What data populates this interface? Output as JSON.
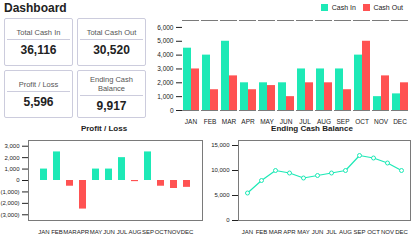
{
  "chart_data": [
    {
      "type": "kpi",
      "title": "Dashboard",
      "categories": [
        "Total Cash In",
        "Total Cash Out",
        "Profit / Loss",
        "Ending Cash Balance"
      ],
      "values": [
        36116,
        30520,
        5596,
        9917
      ],
      "value_labels": [
        "36,116",
        "30,520",
        "5,596",
        "9,917"
      ],
      "data_labels": true
    },
    {
      "type": "bar",
      "categories": [
        "JAN",
        "FEB",
        "MAR",
        "APR",
        "MAY",
        "JUN",
        "JUL",
        "AUG",
        "SEP",
        "OCT",
        "NOV",
        "DEC"
      ],
      "series": [
        {
          "name": "Cash In",
          "color": "#1de9b6",
          "values": [
            4500,
            4000,
            5000,
            2000,
            2000,
            2000,
            3000,
            3000,
            3000,
            4000,
            1000,
            1200
          ]
        },
        {
          "name": "Cash Out",
          "color": "#ff5252",
          "values": [
            3000,
            1500,
            2500,
            1500,
            1800,
            1000,
            2000,
            2000,
            1500,
            5000,
            2500,
            2000
          ]
        }
      ],
      "ylim": [
        0,
        6500
      ],
      "yticks": [
        0,
        {
          "value": 1000,
          "label": "1,000"
        },
        {
          "value": 2000,
          "label": "2,000"
        },
        {
          "value": 3000,
          "label": "3,000"
        },
        {
          "value": 4000,
          "label": "4,000"
        },
        {
          "value": 5000,
          "label": "5,000"
        },
        {
          "value": 6000,
          "label": "6,000"
        }
      ],
      "legend": "upper right"
    },
    {
      "type": "bar",
      "title": "Profit / Loss",
      "categories": [
        "JAN",
        "FEB",
        "MAR",
        "APR",
        "MAY",
        "JUN",
        "JUL",
        "AUG",
        "SEP",
        "OCT",
        "NOV",
        "DEC"
      ],
      "values": [
        1000,
        2500,
        -500,
        -2500,
        1000,
        1000,
        2000,
        -100,
        2500,
        -500,
        -700,
        -600
      ],
      "colors": [
        "#1de9b6",
        "#1de9b6",
        "#ff5252",
        "#ff5252",
        "#1de9b6",
        "#1de9b6",
        "#1de9b6",
        "#ff5252",
        "#1de9b6",
        "#ff5252",
        "#ff5252",
        "#ff5252"
      ],
      "ylim": [
        -3500,
        3500
      ],
      "yticks": [
        {
          "value": -3000,
          "label": "(3,000)"
        },
        {
          "value": -2000,
          "label": "(2,000)"
        },
        {
          "value": -1000,
          "label": "(1,000)"
        },
        0,
        {
          "value": 1000,
          "label": "1,000"
        },
        {
          "value": 2000,
          "label": "2,000"
        },
        {
          "value": 3000,
          "label": "3,000"
        }
      ]
    },
    {
      "type": "line",
      "title": "Ending Cash Balance",
      "categories": [
        "JAN",
        "FEB",
        "MAR",
        "APR",
        "MAY",
        "JUN",
        "JUL",
        "AUG",
        "SEP",
        "OCT",
        "NOV",
        "DEC"
      ],
      "values": [
        5500,
        8000,
        10000,
        9500,
        8500,
        9000,
        9500,
        10000,
        13000,
        12500,
        11500,
        10000
      ],
      "color": "#1de9b6",
      "marker": "circle",
      "ylim": [
        0,
        16000
      ],
      "yticks": [
        0,
        {
          "value": 5000,
          "label": "5,000"
        },
        {
          "value": 10000,
          "label": "10,000"
        },
        {
          "value": 15000,
          "label": "15,000"
        }
      ]
    }
  ]
}
